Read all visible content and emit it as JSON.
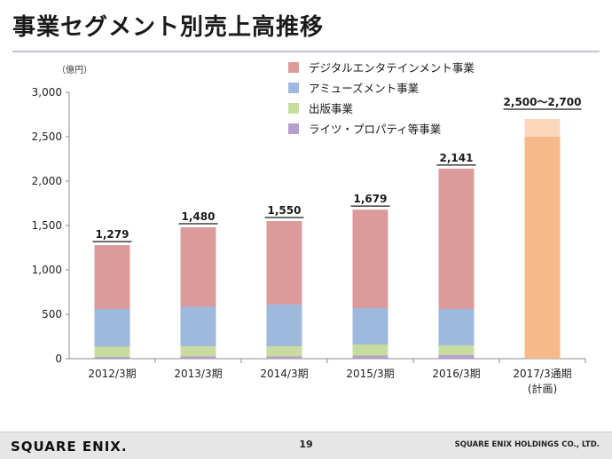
{
  "title": "事業セグメント別売上高推移",
  "footer": {
    "logo": "SQUARE ENIX.",
    "page_number": "19",
    "company": "SQUARE ENIX HOLDINGS CO., LTD."
  },
  "chart_data": {
    "type": "bar",
    "stacked": true,
    "unit_label": "（億円）",
    "categories": [
      "2012/3期",
      "2013/3期",
      "2014/3期",
      "2015/3期",
      "2016/3期",
      "2017/3通期\n(計画)"
    ],
    "ylim": [
      0,
      3000
    ],
    "yticks": [
      0,
      500,
      1000,
      1500,
      2000,
      2500,
      3000
    ],
    "ytick_labels": [
      "0",
      "500",
      "1,000",
      "1,500",
      "2,000",
      "2,500",
      "3,000"
    ],
    "series": [
      {
        "name": "ライツ・プロパティ等事業",
        "color": "#b4a0c8",
        "values": [
          20,
          25,
          25,
          35,
          40,
          null
        ]
      },
      {
        "name": "出版事業",
        "color": "#c8dca0",
        "values": [
          115,
          115,
          115,
          125,
          110,
          null
        ]
      },
      {
        "name": "アミューズメント事業",
        "color": "#9fb9dc",
        "values": [
          425,
          445,
          470,
          410,
          410,
          null
        ]
      },
      {
        "name": "デジタルエンタテインメント事業",
        "color": "#dc9b9b",
        "values": [
          719,
          895,
          940,
          1109,
          1581,
          null
        ]
      }
    ],
    "totals": [
      1279,
      1480,
      1550,
      1679,
      2141,
      null
    ],
    "total_labels": [
      "1,279",
      "1,480",
      "1,550",
      "1,679",
      "2,141",
      "2,500～2,700"
    ],
    "forecast": {
      "low": 2500,
      "high": 2700,
      "color": "#f5b98a",
      "range_color": "#fad6bb"
    },
    "grid": false,
    "legend_position": "top-right"
  }
}
